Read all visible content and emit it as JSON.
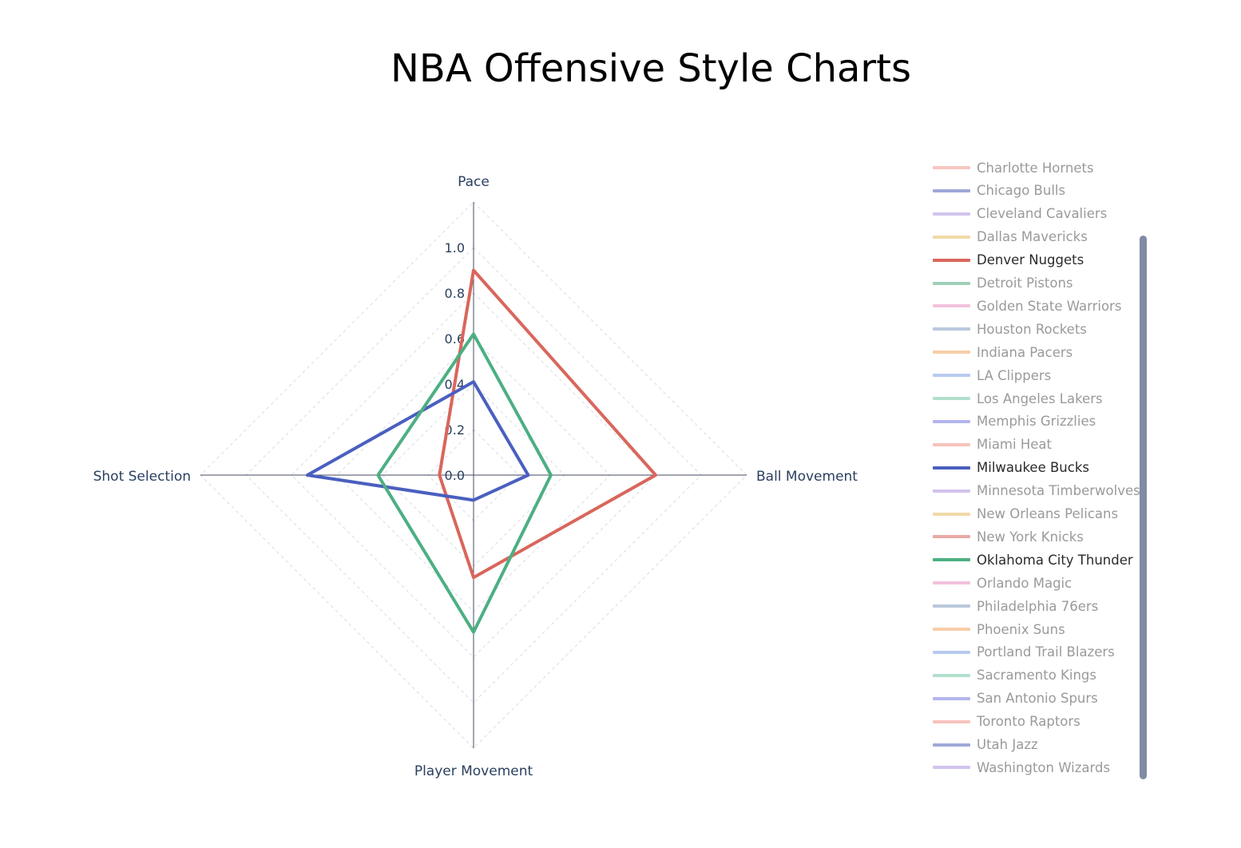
{
  "chart_data": {
    "type": "radar",
    "title": "NBA Offensive Style Charts",
    "axes": [
      "Pace",
      "Ball Movement",
      "Player Movement",
      "Shot Selection"
    ],
    "radial_range": [
      0,
      1.2
    ],
    "radial_ticks": [
      "0.0",
      "0.2",
      "0.4",
      "0.6",
      "0.8",
      "1.0"
    ],
    "series": [
      {
        "name": "Denver Nuggets",
        "color": "#d9665c",
        "values": [
          0.9,
          0.8,
          0.45,
          0.15
        ]
      },
      {
        "name": "Milwaukee Bucks",
        "color": "#4a5fbf",
        "values": [
          0.41,
          0.24,
          0.11,
          0.73
        ]
      },
      {
        "name": "Oklahoma City Thunder",
        "color": "#4caf82",
        "values": [
          0.62,
          0.34,
          0.69,
          0.42
        ]
      }
    ]
  },
  "legend": {
    "items": [
      {
        "label": "Charlotte Hornets",
        "color": "#f7c6c0",
        "active": false
      },
      {
        "label": "Chicago Bulls",
        "color": "#9fa8d8",
        "active": false
      },
      {
        "label": "Cleveland Cavaliers",
        "color": "#d2c3ec",
        "active": false
      },
      {
        "label": "Dallas Mavericks",
        "color": "#f0d9a8",
        "active": false
      },
      {
        "label": "Denver Nuggets",
        "color": "#d9665c",
        "active": true
      },
      {
        "label": "Detroit Pistons",
        "color": "#9fcfb8",
        "active": false
      },
      {
        "label": "Golden State Warriors",
        "color": "#f2c2dc",
        "active": false
      },
      {
        "label": "Houston Rockets",
        "color": "#b9c8dc",
        "active": false
      },
      {
        "label": "Indiana Pacers",
        "color": "#f7cda8",
        "active": false
      },
      {
        "label": "LA Clippers",
        "color": "#b7caf0",
        "active": false
      },
      {
        "label": "Los Angeles Lakers",
        "color": "#b3e0cd",
        "active": false
      },
      {
        "label": "Memphis Grizzlies",
        "color": "#b3b6ec",
        "active": false
      },
      {
        "label": "Miami Heat",
        "color": "#f7c3bd",
        "active": false
      },
      {
        "label": "Milwaukee Bucks",
        "color": "#4a5fbf",
        "active": true
      },
      {
        "label": "Minnesota Timberwolves",
        "color": "#d2c3ec",
        "active": false
      },
      {
        "label": "New Orleans Pelicans",
        "color": "#f0d9a8",
        "active": false
      },
      {
        "label": "New York Knicks",
        "color": "#e8a9a4",
        "active": false
      },
      {
        "label": "Oklahoma City Thunder",
        "color": "#4caf82",
        "active": true
      },
      {
        "label": "Orlando Magic",
        "color": "#f2c2dc",
        "active": false
      },
      {
        "label": "Philadelphia 76ers",
        "color": "#b9c8dc",
        "active": false
      },
      {
        "label": "Phoenix Suns",
        "color": "#f7cda8",
        "active": false
      },
      {
        "label": "Portland Trail Blazers",
        "color": "#b7caf0",
        "active": false
      },
      {
        "label": "Sacramento Kings",
        "color": "#b3e0cd",
        "active": false
      },
      {
        "label": "San Antonio Spurs",
        "color": "#b3b6ec",
        "active": false
      },
      {
        "label": "Toronto Raptors",
        "color": "#f7c3bd",
        "active": false
      },
      {
        "label": "Utah Jazz",
        "color": "#9fa8d8",
        "active": false
      },
      {
        "label": "Washington Wizards",
        "color": "#d2c3ec",
        "active": false
      }
    ],
    "active_text_color": "#2a2a2a",
    "inactive_text_color": "#9a9a9a"
  }
}
